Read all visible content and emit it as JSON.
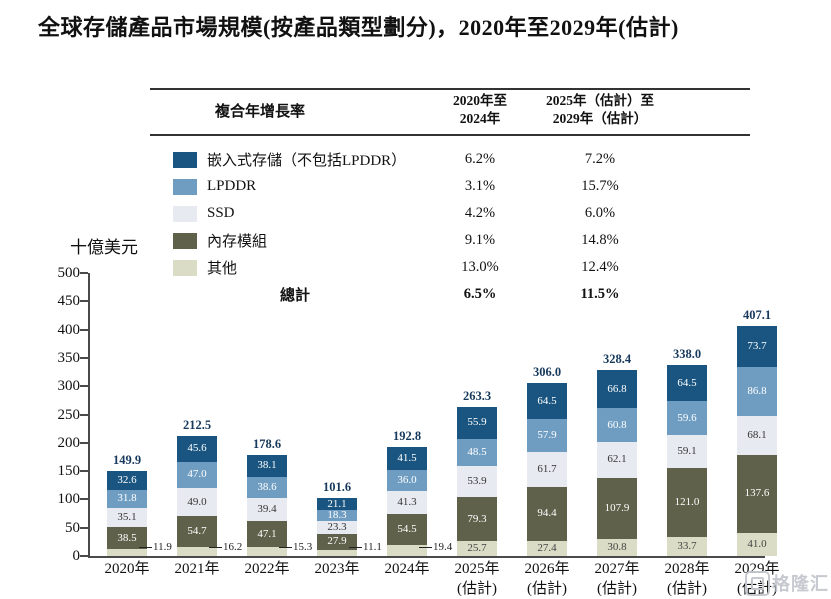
{
  "title": "全球存儲產品市場規模(按產品類型劃分)，2020年至2029年(估計)",
  "cagr_table": {
    "header": {
      "label": "複合年增長率",
      "col1_line1": "2020年至",
      "col1_line2": "2024年",
      "col2_line1": "2025年（估計）至",
      "col2_line2": "2029年（估計）"
    },
    "rows": [
      {
        "name": "嵌入式存儲（不包括LPDDR）",
        "swatch": "#195580",
        "col1": "6.2%",
        "col2": "7.2%"
      },
      {
        "name": "LPDDR",
        "swatch": "#6f9dc2",
        "col1": "3.1%",
        "col2": "15.7%"
      },
      {
        "name": "SSD",
        "swatch": "#e7ebf1",
        "col1": "4.2%",
        "col2": "6.0%"
      },
      {
        "name": "內存模組",
        "swatch": "#5f614b",
        "col1": "9.1%",
        "col2": "14.8%"
      },
      {
        "name": "其他",
        "swatch": "#dadcc5",
        "col1": "13.0%",
        "col2": "12.4%"
      }
    ],
    "total": {
      "label": "總計",
      "col1": "6.5%",
      "col2": "11.5%"
    }
  },
  "chart_data": {
    "type": "bar",
    "stacked": true,
    "title": "全球存儲產品市場規模(按產品類型劃分)，2020年至2029年(估計)",
    "xlabel": "",
    "ylabel": "十億美元",
    "ylim": [
      0,
      500
    ],
    "ytick_step": 50,
    "grid": false,
    "legend_position": "top-left-table",
    "categories": [
      {
        "label": "2020年",
        "sub": ""
      },
      {
        "label": "2021年",
        "sub": ""
      },
      {
        "label": "2022年",
        "sub": ""
      },
      {
        "label": "2023年",
        "sub": ""
      },
      {
        "label": "2024年",
        "sub": ""
      },
      {
        "label": "2025年",
        "sub": "(估計)"
      },
      {
        "label": "2026年",
        "sub": "(估計)"
      },
      {
        "label": "2027年",
        "sub": "(估計)"
      },
      {
        "label": "2028年",
        "sub": "(估計)"
      },
      {
        "label": "2029年",
        "sub": "(估計)"
      }
    ],
    "series": [
      {
        "key": "embedded",
        "name": "嵌入式存儲（不包括LPDDR）",
        "color": "#195580",
        "label_color": "#ffffff",
        "values": [
          32.6,
          45.6,
          38.1,
          21.1,
          41.5,
          55.9,
          64.5,
          66.8,
          64.5,
          73.7
        ]
      },
      {
        "key": "lpddr",
        "name": "LPDDR",
        "color": "#6f9dc2",
        "label_color": "#ffffff",
        "values": [
          31.8,
          47.0,
          38.6,
          18.3,
          36.0,
          48.5,
          57.9,
          60.8,
          59.6,
          86.8
        ]
      },
      {
        "key": "ssd",
        "name": "SSD",
        "color": "#e7ebf1",
        "label_color": "#333333",
        "values": [
          35.1,
          49.0,
          39.4,
          23.3,
          41.3,
          53.9,
          61.7,
          62.1,
          59.1,
          68.1
        ]
      },
      {
        "key": "memory_module",
        "name": "內存模組",
        "color": "#5f614b",
        "label_color": "#ffffff",
        "values": [
          38.5,
          54.7,
          47.1,
          27.9,
          54.5,
          79.3,
          94.4,
          107.9,
          121.0,
          137.6
        ]
      },
      {
        "key": "other",
        "name": "其他",
        "color": "#dadcc5",
        "label_color": "#444444",
        "values": [
          11.9,
          16.2,
          15.3,
          11.1,
          19.4,
          25.7,
          27.4,
          30.8,
          33.7,
          41.0
        ]
      }
    ],
    "totals": [
      149.9,
      212.5,
      178.6,
      101.6,
      192.8,
      263.3,
      306.0,
      328.4,
      338.0,
      407.1
    ],
    "other_outside": [
      true,
      true,
      true,
      true,
      true,
      false,
      false,
      false,
      false,
      false
    ]
  },
  "watermark": {
    "text": "格隆汇"
  }
}
